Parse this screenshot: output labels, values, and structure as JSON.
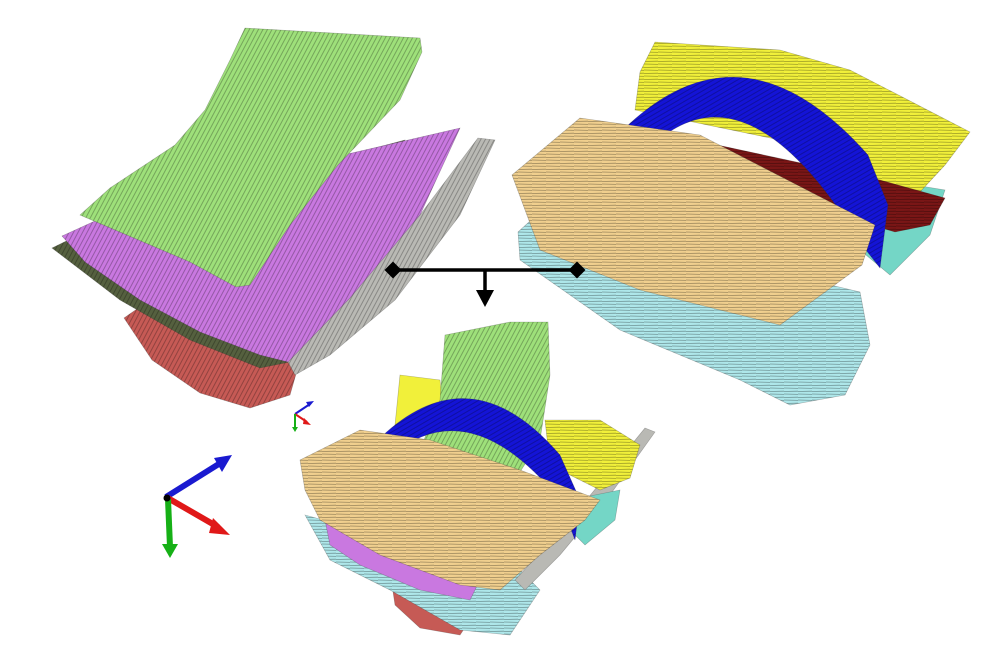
{
  "figure": {
    "panels": [
      {
        "id": "stack-a",
        "layers": [
          {
            "name": "green-fibre-layer",
            "color": "#9ee07a"
          },
          {
            "name": "violet-fibre-layer",
            "color": "#c978e0"
          },
          {
            "name": "dark-olive-fibre-layer",
            "color": "#55603f"
          },
          {
            "name": "red-fibre-layer",
            "color": "#c65a55"
          },
          {
            "name": "grey-fibre-layer",
            "color": "#b9b9b4"
          }
        ]
      },
      {
        "id": "stack-b",
        "layers": [
          {
            "name": "yellow-fibre-layer",
            "color": "#f1f03a"
          },
          {
            "name": "blue-arched-fibre-bundle",
            "color": "#1414d6"
          },
          {
            "name": "dark-red-fibre-layer",
            "color": "#7a1616"
          },
          {
            "name": "tan-fibre-layer",
            "color": "#f0cf8e"
          },
          {
            "name": "cyan-fibre-layer",
            "color": "#aee7ea"
          },
          {
            "name": "teal-fibre-layer",
            "color": "#74d6c6"
          }
        ]
      },
      {
        "id": "combined-stack",
        "layers": [
          {
            "name": "yellow-fibre-layer",
            "color": "#f1f03a"
          },
          {
            "name": "green-fibre-layer",
            "color": "#9ee07a"
          },
          {
            "name": "blue-arched-fibre-bundle",
            "color": "#1414d6"
          },
          {
            "name": "tan-fibre-layer",
            "color": "#f0cf8e"
          },
          {
            "name": "violet-fibre-layer",
            "color": "#c978e0"
          },
          {
            "name": "cyan-fibre-layer",
            "color": "#aee7ea"
          },
          {
            "name": "red-fibre-layer",
            "color": "#c65a55"
          }
        ]
      }
    ],
    "axis_colors": {
      "x": "#e01818",
      "y": "#16b016",
      "z": "#1a1ad0"
    },
    "connector_color": "#000000"
  }
}
